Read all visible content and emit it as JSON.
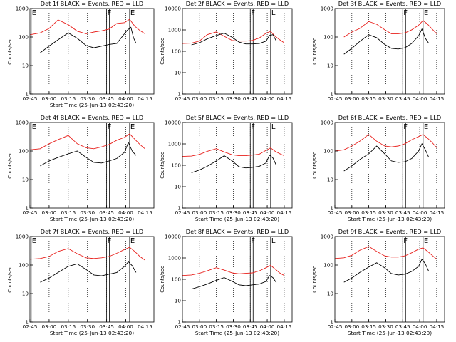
{
  "figure": {
    "suptitle_hidden": "",
    "black_label": "Events",
    "red_label": "LLD"
  },
  "chart_data": [
    {
      "type": "line",
      "title": "Det 1f BLACK = Events, RED = LLD",
      "xlabel": "Start Time (25-Jun-13 02:43:20)",
      "ylabel": "Counts/sec",
      "yscale": "log",
      "ylim": [
        1,
        1000
      ],
      "yticks": [
        "1",
        "10",
        "100",
        "1000"
      ],
      "xticks": [
        "02:45",
        "03:00",
        "03:15",
        "03:30",
        "03:45",
        "04:00",
        "04:15"
      ],
      "xlim_min": [
        0,
        97
      ],
      "markers": [
        {
          "label": "E",
          "at_min": 1
        },
        {
          "label": "F",
          "at_min": 60
        },
        {
          "label": "E",
          "at_min": 78
        }
      ],
      "series": [
        {
          "name": "LLD",
          "color": "#e8201c",
          "x": [
            0,
            8,
            15,
            22,
            30,
            37,
            44,
            50,
            56,
            62,
            68,
            74,
            78,
            82,
            86,
            90
          ],
          "y": [
            120,
            140,
            200,
            400,
            270,
            160,
            130,
            150,
            165,
            190,
            300,
            320,
            420,
            240,
            170,
            130
          ]
        },
        {
          "name": "Events",
          "color": "#000000",
          "x": [
            8,
            15,
            22,
            30,
            37,
            44,
            50,
            56,
            62,
            68,
            74,
            76,
            79,
            81,
            83
          ],
          "y": [
            28,
            48,
            80,
            140,
            90,
            50,
            42,
            48,
            55,
            60,
            130,
            170,
            220,
            95,
            60
          ]
        }
      ]
    },
    {
      "type": "line",
      "title": "Det 2f BLACK = Events, RED = LLD",
      "xlabel": "",
      "ylabel": "Counts/sec",
      "yscale": "log",
      "ylim": [
        1,
        10000
      ],
      "yticks": [
        "1",
        "10",
        "100",
        "1000",
        "10000"
      ],
      "xticks": [
        "02:45",
        "03:00",
        "03:15",
        "03:30",
        "03:45",
        "04:00",
        "04:15"
      ],
      "xlim_min": [
        0,
        97
      ],
      "markers": [
        {
          "label": "F",
          "at_min": 60
        },
        {
          "label": "L",
          "at_min": 78
        }
      ],
      "series": [
        {
          "name": "LLD",
          "color": "#e8201c",
          "x": [
            0,
            8,
            15,
            22,
            30,
            37,
            44,
            50,
            56,
            62,
            68,
            74,
            78,
            82,
            86,
            90
          ],
          "y": [
            230,
            240,
            300,
            600,
            800,
            500,
            320,
            300,
            300,
            320,
            420,
            700,
            850,
            500,
            350,
            250
          ]
        },
        {
          "name": "Events",
          "color": "#000000",
          "x": [
            8,
            15,
            22,
            30,
            37,
            44,
            50,
            56,
            62,
            68,
            74,
            77,
            80,
            83
          ],
          "y": [
            200,
            250,
            380,
            550,
            700,
            450,
            270,
            220,
            220,
            230,
            300,
            550,
            600,
            300
          ]
        }
      ]
    },
    {
      "type": "line",
      "title": "Det 3f BLACK = Events, RED = LLD",
      "xlabel": "",
      "ylabel": "Counts/sec",
      "yscale": "log",
      "ylim": [
        1,
        1000
      ],
      "yticks": [
        "1",
        "10",
        "100",
        "1000"
      ],
      "xticks": [
        "02:45",
        "03:00",
        "03:15",
        "03:30",
        "03:45",
        "04:00",
        "04:15"
      ],
      "xlim_min": [
        0,
        97
      ],
      "markers": [
        {
          "label": "F",
          "at_min": 60
        },
        {
          "label": "E",
          "at_min": 78
        }
      ],
      "series": [
        {
          "name": "LLD",
          "color": "#e8201c",
          "x": [
            8,
            15,
            22,
            30,
            37,
            44,
            50,
            56,
            62,
            68,
            74,
            78,
            82,
            86,
            90
          ],
          "y": [
            100,
            150,
            200,
            350,
            280,
            180,
            130,
            130,
            140,
            180,
            260,
            380,
            280,
            190,
            130
          ]
        },
        {
          "name": "Events",
          "color": "#000000",
          "x": [
            8,
            15,
            22,
            30,
            37,
            44,
            50,
            56,
            62,
            68,
            74,
            77,
            80,
            83
          ],
          "y": [
            25,
            40,
            70,
            120,
            95,
            55,
            40,
            38,
            42,
            60,
            110,
            190,
            90,
            60
          ]
        }
      ]
    },
    {
      "type": "line",
      "title": "Det 4f BLACK = Events, RED = LLD",
      "xlabel": "Start Time (25-Jun-13 02:43:20)",
      "ylabel": "Counts/sec",
      "yscale": "log",
      "ylim": [
        1,
        1000
      ],
      "yticks": [
        "1",
        "10",
        "100",
        "1000"
      ],
      "xticks": [
        "02:45",
        "03:00",
        "03:15",
        "03:30",
        "03:45",
        "04:00",
        "04:15"
      ],
      "xlim_min": [
        0,
        97
      ],
      "markers": [
        {
          "label": "E",
          "at_min": 1
        },
        {
          "label": "F",
          "at_min": 60
        },
        {
          "label": "E",
          "at_min": 78
        }
      ],
      "series": [
        {
          "name": "LLD",
          "color": "#e8201c",
          "x": [
            0,
            8,
            15,
            22,
            30,
            37,
            44,
            50,
            56,
            62,
            68,
            74,
            78,
            82,
            86,
            90
          ],
          "y": [
            110,
            120,
            180,
            250,
            350,
            180,
            130,
            120,
            140,
            170,
            240,
            300,
            400,
            260,
            170,
            120
          ]
        },
        {
          "name": "Events",
          "color": "#000000",
          "x": [
            8,
            15,
            22,
            30,
            37,
            44,
            50,
            56,
            62,
            68,
            74,
            77,
            80,
            83
          ],
          "y": [
            30,
            45,
            60,
            80,
            100,
            60,
            40,
            38,
            45,
            55,
            90,
            200,
            100,
            70
          ]
        }
      ]
    },
    {
      "type": "line",
      "title": "Det 5f BLACK = Events, RED = LLD",
      "xlabel": "Start Time (25-Jun-13 02:43:20)",
      "ylabel": "Counts/sec",
      "yscale": "log",
      "ylim": [
        1,
        10000
      ],
      "yticks": [
        "1",
        "10",
        "100",
        "1000",
        "10000"
      ],
      "xticks": [
        "02:45",
        "03:00",
        "03:15",
        "03:30",
        "03:45",
        "04:00",
        "04:15"
      ],
      "xlim_min": [
        0,
        97
      ],
      "markers": [
        {
          "label": "F",
          "at_min": 60
        },
        {
          "label": "L",
          "at_min": 78
        }
      ],
      "series": [
        {
          "name": "LLD",
          "color": "#e8201c",
          "x": [
            0,
            8,
            15,
            22,
            30,
            37,
            44,
            50,
            56,
            62,
            68,
            74,
            78,
            82,
            86,
            90
          ],
          "y": [
            260,
            270,
            320,
            450,
            600,
            420,
            310,
            280,
            280,
            300,
            330,
            500,
            650,
            450,
            350,
            280
          ]
        },
        {
          "name": "Events",
          "color": "#000000",
          "x": [
            8,
            15,
            22,
            30,
            37,
            44,
            50,
            56,
            62,
            68,
            74,
            77,
            80,
            83
          ],
          "y": [
            45,
            60,
            90,
            160,
            280,
            160,
            85,
            75,
            80,
            90,
            130,
            300,
            220,
            100
          ]
        }
      ]
    },
    {
      "type": "line",
      "title": "Det 6f BLACK = Events, RED = LLD",
      "xlabel": "Start Time (25-Jun-13 02:43:20)",
      "ylabel": "Counts/sec",
      "yscale": "log",
      "ylim": [
        1,
        1000
      ],
      "yticks": [
        "1",
        "10",
        "100",
        "1000"
      ],
      "xticks": [
        "02:45",
        "03:00",
        "03:15",
        "03:30",
        "03:45",
        "04:00",
        "04:15"
      ],
      "xlim_min": [
        0,
        97
      ],
      "markers": [
        {
          "label": "F",
          "at_min": 60
        },
        {
          "label": "E",
          "at_min": 78
        }
      ],
      "series": [
        {
          "name": "LLD",
          "color": "#e8201c",
          "x": [
            0,
            8,
            15,
            22,
            30,
            37,
            44,
            50,
            56,
            62,
            68,
            74,
            78,
            82,
            86,
            90
          ],
          "y": [
            100,
            110,
            150,
            220,
            380,
            220,
            150,
            140,
            150,
            180,
            250,
            320,
            380,
            280,
            200,
            130
          ]
        },
        {
          "name": "Events",
          "color": "#000000",
          "x": [
            8,
            15,
            22,
            30,
            37,
            44,
            50,
            56,
            62,
            68,
            74,
            77,
            80,
            83
          ],
          "y": [
            20,
            30,
            50,
            80,
            150,
            80,
            45,
            40,
            42,
            55,
            100,
            180,
            110,
            60
          ]
        }
      ]
    },
    {
      "type": "line",
      "title": "Det 7f BLACK = Events, RED = LLD",
      "xlabel": "Start Time (25-Jun-13 02:43:20)",
      "ylabel": "Counts/sec",
      "yscale": "log",
      "ylim": [
        1,
        1000
      ],
      "yticks": [
        "1",
        "10",
        "100",
        "1000"
      ],
      "xticks": [
        "02:45",
        "03:00",
        "03:15",
        "03:30",
        "03:45",
        "04:00",
        "04:15"
      ],
      "xlim_min": [
        0,
        97
      ],
      "markers": [
        {
          "label": "E",
          "at_min": 1
        },
        {
          "label": "F",
          "at_min": 60
        },
        {
          "label": "E",
          "at_min": 78
        }
      ],
      "series": [
        {
          "name": "LLD",
          "color": "#e8201c",
          "x": [
            0,
            8,
            15,
            22,
            30,
            37,
            44,
            50,
            56,
            62,
            68,
            74,
            78,
            82,
            86,
            90
          ],
          "y": [
            160,
            170,
            200,
            300,
            380,
            250,
            180,
            170,
            180,
            200,
            260,
            350,
            420,
            300,
            200,
            150
          ]
        },
        {
          "name": "Events",
          "color": "#000000",
          "x": [
            8,
            15,
            22,
            30,
            37,
            44,
            50,
            56,
            62,
            68,
            74,
            77,
            80,
            83
          ],
          "y": [
            25,
            35,
            55,
            90,
            110,
            70,
            45,
            42,
            48,
            55,
            90,
            130,
            95,
            55
          ]
        }
      ]
    },
    {
      "type": "line",
      "title": "Det 8f BLACK = Events, RED = LLD",
      "xlabel": "Start Time (25-Jun-13 02:43:20)",
      "ylabel": "Counts/sec",
      "yscale": "log",
      "ylim": [
        1,
        10000
      ],
      "yticks": [
        "1",
        "10",
        "100",
        "1000",
        "10000"
      ],
      "xticks": [
        "02:45",
        "03:00",
        "03:15",
        "03:30",
        "03:45",
        "04:00",
        "04:15"
      ],
      "xlim_min": [
        0,
        97
      ],
      "markers": [
        {
          "label": "F",
          "at_min": 60
        },
        {
          "label": "L",
          "at_min": 78
        }
      ],
      "series": [
        {
          "name": "LLD",
          "color": "#e8201c",
          "x": [
            0,
            8,
            15,
            22,
            30,
            37,
            44,
            50,
            56,
            62,
            68,
            74,
            78,
            82,
            86,
            90
          ],
          "y": [
            150,
            160,
            190,
            250,
            350,
            270,
            200,
            180,
            190,
            200,
            250,
            350,
            450,
            300,
            200,
            150
          ]
        },
        {
          "name": "Events",
          "color": "#000000",
          "x": [
            8,
            15,
            22,
            30,
            37,
            44,
            50,
            56,
            62,
            68,
            74,
            77,
            80,
            83
          ],
          "y": [
            35,
            45,
            60,
            90,
            120,
            80,
            55,
            50,
            55,
            60,
            80,
            150,
            120,
            70
          ]
        }
      ]
    },
    {
      "type": "line",
      "title": "Det 9f BLACK = Events, RED = LLD",
      "xlabel": "Start Time (25-Jun-13 02:43:20)",
      "ylabel": "Counts/sec",
      "yscale": "log",
      "ylim": [
        1,
        1000
      ],
      "yticks": [
        "1",
        "10",
        "100",
        "1000"
      ],
      "xticks": [
        "02:45",
        "03:00",
        "03:15",
        "03:30",
        "03:45",
        "04:00",
        "04:15"
      ],
      "xlim_min": [
        0,
        97
      ],
      "markers": [
        {
          "label": "F",
          "at_min": 60
        },
        {
          "label": "E",
          "at_min": 78
        }
      ],
      "series": [
        {
          "name": "LLD",
          "color": "#e8201c",
          "x": [
            0,
            8,
            15,
            22,
            30,
            37,
            44,
            50,
            56,
            62,
            68,
            74,
            78,
            82,
            86,
            90
          ],
          "y": [
            170,
            180,
            220,
            330,
            450,
            300,
            210,
            190,
            190,
            210,
            270,
            360,
            400,
            300,
            220,
            160
          ]
        },
        {
          "name": "Events",
          "color": "#000000",
          "x": [
            8,
            15,
            22,
            30,
            37,
            44,
            50,
            56,
            62,
            68,
            74,
            77,
            80,
            83
          ],
          "y": [
            25,
            35,
            55,
            85,
            120,
            80,
            50,
            45,
            48,
            60,
            90,
            160,
            110,
            60
          ]
        }
      ]
    }
  ]
}
